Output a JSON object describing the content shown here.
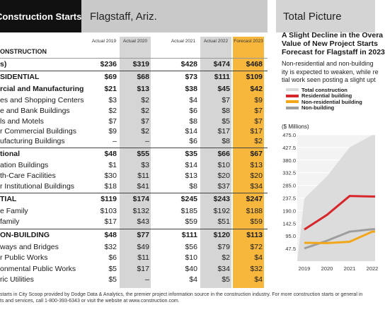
{
  "left": {
    "title": "Construction Starts",
    "location": "Flagstaff, Ariz.",
    "columns": [
      "Actual 2019",
      "Actual 2020",
      "Actual 2021",
      "Actual 2022",
      "Forecast 2023"
    ],
    "rows": [
      {
        "label": "ONSTRUCTION",
        "values": [
          "",
          "",
          "",
          "",
          ""
        ],
        "style": "bold small"
      },
      {
        "label": "s)",
        "values": [
          "$236",
          "$319",
          "$428",
          "$474",
          "$468"
        ],
        "style": "bold line"
      },
      {
        "label": "SIDENTIAL",
        "values": [
          "$69",
          "$68",
          "$73",
          "$111",
          "$109"
        ],
        "style": "bold sep"
      },
      {
        "label": "rcial and Manufacturing",
        "values": [
          "$21",
          "$13",
          "$38",
          "$45",
          "$42"
        ],
        "style": "bold"
      },
      {
        "label": "es and Shopping Centers",
        "values": [
          "$3",
          "$2",
          "$4",
          "$7",
          "$9"
        ],
        "style": ""
      },
      {
        "label": "e and Bank Buildings",
        "values": [
          "$2",
          "$2",
          "$6",
          "$8",
          "$7"
        ],
        "style": ""
      },
      {
        "label": "ls and Motels",
        "values": [
          "$7",
          "$7",
          "$8",
          "$5",
          "$7"
        ],
        "style": ""
      },
      {
        "label": "r Commercial Buildings",
        "values": [
          "$9",
          "$2",
          "$14",
          "$17",
          "$17"
        ],
        "style": ""
      },
      {
        "label": "ufacturing Buildings",
        "values": [
          "–",
          "–",
          "$6",
          "$8",
          "$2"
        ],
        "style": ""
      },
      {
        "label": "tional",
        "values": [
          "$48",
          "$55",
          "$35",
          "$66",
          "$67"
        ],
        "style": "bold sep"
      },
      {
        "label": "ation Buildings",
        "values": [
          "$1",
          "$3",
          "$14",
          "$10",
          "$13"
        ],
        "style": ""
      },
      {
        "label": "th-Care Facilities",
        "values": [
          "$30",
          "$11",
          "$13",
          "$20",
          "$20"
        ],
        "style": ""
      },
      {
        "label": "r Institutional Buildings",
        "values": [
          "$18",
          "$41",
          "$8",
          "$37",
          "$34"
        ],
        "style": ""
      },
      {
        "label": "TIAL",
        "values": [
          "$119",
          "$174",
          "$245",
          "$243",
          "$247"
        ],
        "style": "bold sep"
      },
      {
        "label": "e Family",
        "values": [
          "$103",
          "$132",
          "$185",
          "$192",
          "$188"
        ],
        "style": ""
      },
      {
        "label": "family",
        "values": [
          "$17",
          "$43",
          "$59",
          "$51",
          "$59"
        ],
        "style": ""
      },
      {
        "label": "ON-BUILDING",
        "values": [
          "$48",
          "$77",
          "$111",
          "$120",
          "$113"
        ],
        "style": "bold sep"
      },
      {
        "label": "ways and Bridges",
        "values": [
          "$32",
          "$49",
          "$56",
          "$79",
          "$72"
        ],
        "style": ""
      },
      {
        "label": "r Public Works",
        "values": [
          "$6",
          "$11",
          "$10",
          "$2",
          "$4"
        ],
        "style": ""
      },
      {
        "label": "onmental Public Works",
        "values": [
          "$5",
          "$17",
          "$40",
          "$34",
          "$32"
        ],
        "style": ""
      },
      {
        "label": "ric Utilities",
        "values": [
          "$5",
          "–",
          "$4",
          "$5",
          "$4"
        ],
        "style": ""
      }
    ]
  },
  "right": {
    "header": "Total Picture",
    "title_lines": [
      "A Slight Decline in the Overa",
      "Value of New Project Starts",
      "Forecast for Flagstaff in 2023"
    ],
    "desc_lines": [
      "Non-residential and non-building",
      "ity is expected to weaken, while re",
      "tial work seen posting a slight upt"
    ],
    "legend": [
      {
        "label": "Total construction",
        "color": "#d9d9d9"
      },
      {
        "label": "Residential building",
        "color": "#d7262b"
      },
      {
        "label": "Non-residential building",
        "color": "#f2a71b"
      },
      {
        "label": "Non-building",
        "color": "#9e9e9e"
      }
    ],
    "units": "($ Millions)"
  },
  "chart_data": {
    "type": "area",
    "x": [
      "2019",
      "2020",
      "2021",
      "2022"
    ],
    "yticks": [
      "475.0",
      "427.5",
      "380.0",
      "332.5",
      "285.0",
      "237.5",
      "190.0",
      "142.5",
      "95.0",
      "47.5"
    ],
    "ylim": [
      47.5,
      475.0
    ],
    "series": [
      {
        "name": "Total construction",
        "values": [
          236,
          319,
          428,
          474
        ]
      },
      {
        "name": "Residential building",
        "values": [
          119,
          174,
          245,
          243
        ]
      },
      {
        "name": "Non-residential building",
        "values": [
          69,
          68,
          73,
          111
        ]
      },
      {
        "name": "Non-building",
        "values": [
          48,
          77,
          111,
          120
        ]
      }
    ]
  },
  "footer": {
    "line1": "starts in City Scoop provided by Dodge Data & Analytics, the premier project information source in the construction industry. For more construction starts or general in",
    "line2": "ts and services, call 1-800-393-6343 or visit the website at www.construction.com."
  }
}
